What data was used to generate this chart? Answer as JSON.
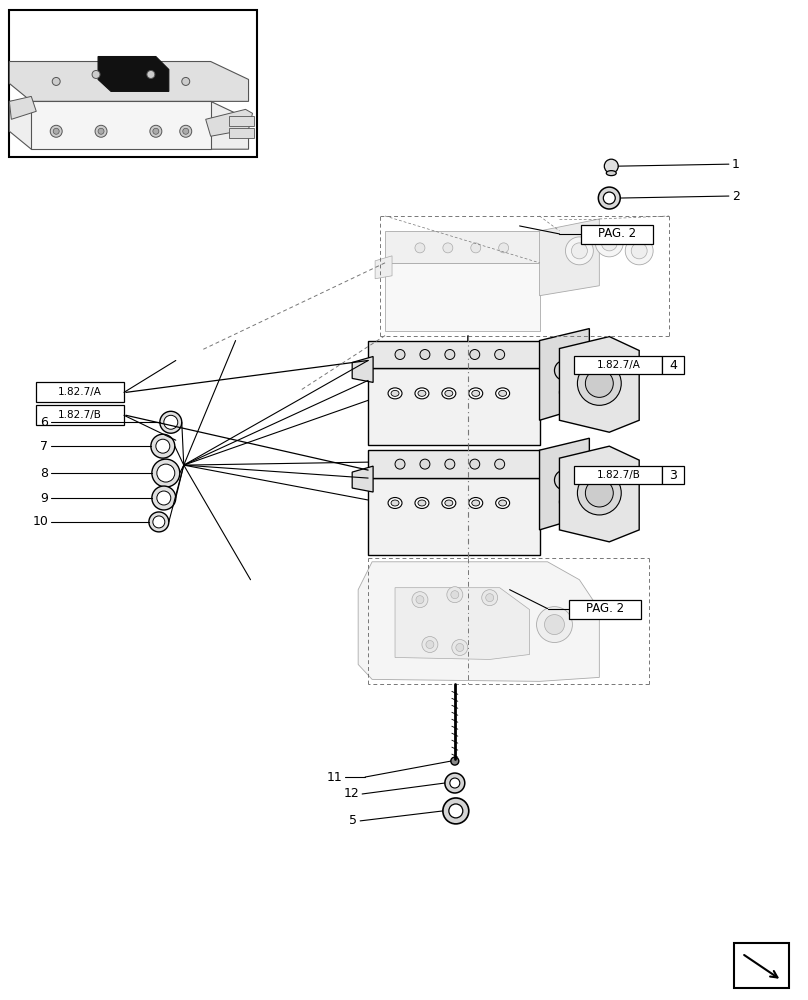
{
  "bg": "#ffffff",
  "lc": "#000000",
  "gc": "#888888",
  "dc": "#777777",
  "fig_w": 8.08,
  "fig_h": 10.0,
  "dpi": 100,
  "labels": {
    "pag2": "PAG. 2",
    "refa": "1.82.7/A",
    "refb": "1.82.7/B",
    "n1": "1",
    "n2": "2",
    "n3": "3",
    "n4": "4",
    "n5": "5",
    "n6": "6",
    "n7": "7",
    "n8": "8",
    "n9": "9",
    "n10": "10",
    "n11": "11",
    "n12": "12"
  }
}
